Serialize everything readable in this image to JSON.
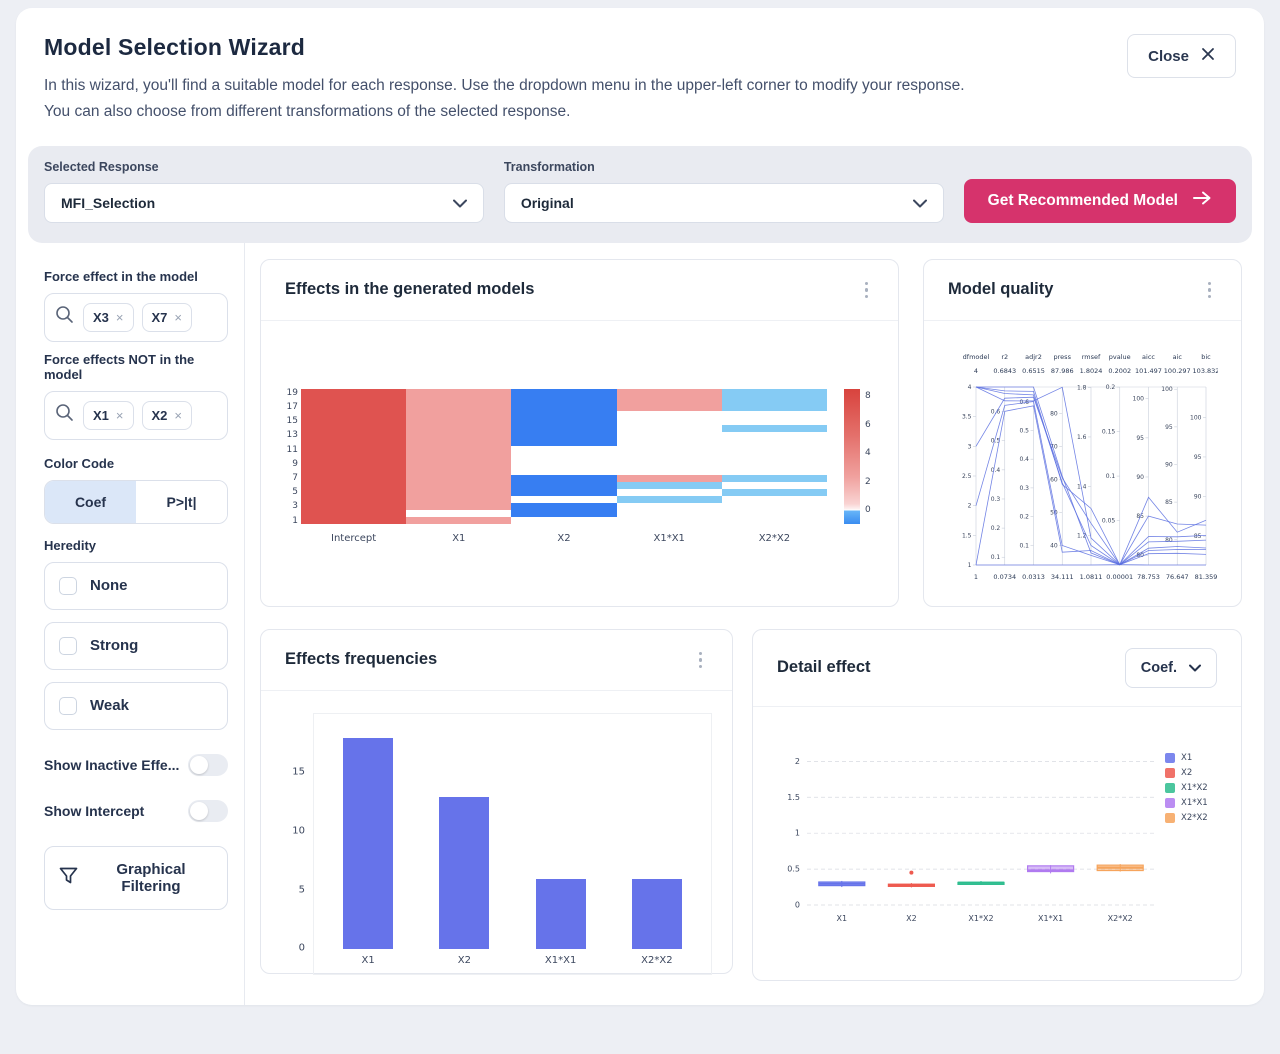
{
  "header": {
    "title": "Model Selection Wizard",
    "description_line1": "In this wizard, you'll find a suitable model for each response. Use the dropdown menu in the upper-left corner to modify your response.",
    "description_line2": "You can also choose from different transformations of the selected response.",
    "close_label": "Close"
  },
  "toolbar": {
    "selected_response_label": "Selected Response",
    "selected_response_value": "MFI_Selection",
    "transformation_label": "Transformation",
    "transformation_value": "Original",
    "recommend_button_label": "Get Recommended Model",
    "accent_color": "#d6336c"
  },
  "sidebar": {
    "force_in": {
      "label": "Force effect in the model",
      "chips": [
        "X3",
        "X7"
      ]
    },
    "force_out": {
      "label": "Force effects NOT in the model",
      "chips": [
        "X1",
        "X2"
      ]
    },
    "color_code": {
      "label": "Color Code",
      "options": [
        "Coef",
        "P>|t|"
      ],
      "selected": "Coef"
    },
    "heredity": {
      "label": "Heredity",
      "options": [
        {
          "label": "None",
          "checked": false
        },
        {
          "label": "Strong",
          "checked": false
        },
        {
          "label": "Weak",
          "checked": false
        }
      ]
    },
    "toggles": [
      {
        "label": "Show Inactive Effe...",
        "on": false
      },
      {
        "label": "Show Intercept",
        "on": false
      }
    ],
    "graphical_filtering_label": "Graphical Filtering"
  },
  "cards": {
    "effects_models": {
      "title": "Effects in the generated models"
    },
    "model_quality": {
      "title": "Model quality"
    },
    "effects_frequencies": {
      "title": "Effects frequencies"
    },
    "detail_effect": {
      "title": "Detail effect",
      "mode_selector": "Coef."
    }
  },
  "chart_data": [
    {
      "id": "effects_heatmap",
      "type": "heatmap",
      "title": "Effects in the generated models",
      "columns": [
        "Intercept",
        "X1",
        "X2",
        "X1*X1",
        "X2*X2"
      ],
      "y_tick_labels": [
        "19",
        "17",
        "15",
        "13",
        "11",
        "9",
        "7",
        "5",
        "3",
        "1"
      ],
      "palette": {
        "red": "#df5350",
        "salmon": "#f1a09e",
        "blue": "#377ef2",
        "lightblue": "#85cbf4",
        "white": "#ffffff"
      },
      "rows": [
        {
          "model": 19,
          "colors": [
            "red",
            "salmon",
            "blue",
            "salmon",
            "lightblue"
          ]
        },
        {
          "model": 18,
          "colors": [
            "red",
            "salmon",
            "blue",
            "salmon",
            "lightblue"
          ]
        },
        {
          "model": 17,
          "colors": [
            "red",
            "salmon",
            "blue",
            "salmon",
            "lightblue"
          ]
        },
        {
          "model": 16,
          "colors": [
            "red",
            "salmon",
            "blue",
            "white",
            "white"
          ]
        },
        {
          "model": 15,
          "colors": [
            "red",
            "salmon",
            "blue",
            "white",
            "white"
          ]
        },
        {
          "model": 14,
          "colors": [
            "red",
            "salmon",
            "blue",
            "white",
            "lightblue"
          ]
        },
        {
          "model": 13,
          "colors": [
            "red",
            "salmon",
            "blue",
            "white",
            "white"
          ]
        },
        {
          "model": 12,
          "colors": [
            "red",
            "salmon",
            "blue",
            "white",
            "white"
          ]
        },
        {
          "model": 11,
          "colors": [
            "red",
            "salmon",
            "white",
            "white",
            "white"
          ]
        },
        {
          "model": 10,
          "colors": [
            "red",
            "salmon",
            "white",
            "white",
            "white"
          ]
        },
        {
          "model": 9,
          "colors": [
            "red",
            "salmon",
            "white",
            "white",
            "white"
          ]
        },
        {
          "model": 8,
          "colors": [
            "red",
            "salmon",
            "white",
            "white",
            "white"
          ]
        },
        {
          "model": 7,
          "colors": [
            "red",
            "salmon",
            "blue",
            "salmon",
            "lightblue"
          ]
        },
        {
          "model": 6,
          "colors": [
            "red",
            "salmon",
            "blue",
            "lightblue",
            "white"
          ]
        },
        {
          "model": 5,
          "colors": [
            "red",
            "salmon",
            "blue",
            "white",
            "lightblue"
          ]
        },
        {
          "model": 4,
          "colors": [
            "red",
            "salmon",
            "white",
            "lightblue",
            "white"
          ]
        },
        {
          "model": 3,
          "colors": [
            "red",
            "salmon",
            "blue",
            "white",
            "white"
          ]
        },
        {
          "model": 2,
          "colors": [
            "red",
            "white",
            "blue",
            "white",
            "white"
          ]
        },
        {
          "model": 1,
          "colors": [
            "red",
            "salmon",
            "white",
            "white",
            "white"
          ]
        }
      ],
      "colorbar": {
        "min": -1,
        "max": 8.5,
        "ticks": [
          8,
          6,
          4,
          2,
          0
        ]
      }
    },
    {
      "id": "model_quality",
      "type": "parallel-coordinates",
      "title": "Model quality",
      "line_color": "#5b6fe0",
      "axes": [
        {
          "name": "dfmodel",
          "max_label": "4",
          "min_label": "1",
          "range": [
            1,
            4
          ],
          "ticks": [
            1,
            1.5,
            2,
            2.5,
            3,
            3.5,
            4
          ]
        },
        {
          "name": "r2",
          "max_label": "0.6843",
          "min_label": "0.0734",
          "range": [
            0.0734,
            0.6843
          ],
          "ticks": [
            0.1,
            0.2,
            0.3,
            0.4,
            0.5,
            0.6
          ]
        },
        {
          "name": "adjr2",
          "max_label": "0.6515",
          "min_label": "0.0313",
          "range": [
            0.0313,
            0.6515
          ],
          "ticks": [
            0.1,
            0.2,
            0.3,
            0.4,
            0.5,
            0.6
          ]
        },
        {
          "name": "press",
          "max_label": "87.986",
          "min_label": "34.111",
          "range": [
            34.111,
            87.986
          ],
          "ticks": [
            40,
            50,
            60,
            70,
            80
          ]
        },
        {
          "name": "rmsef",
          "max_label": "1.8024",
          "min_label": "1.0811",
          "range": [
            1.0811,
            1.8024
          ],
          "ticks": [
            1.2,
            1.4,
            1.6,
            1.8
          ]
        },
        {
          "name": "pvalue",
          "max_label": "0.2002",
          "min_label": "0.00001",
          "range": [
            1e-05,
            0.2002
          ],
          "ticks": [
            0.05,
            0.1,
            0.15,
            0.2
          ]
        },
        {
          "name": "aicc",
          "max_label": "101.497",
          "min_label": "78.753",
          "range": [
            78.753,
            101.497
          ],
          "ticks": [
            80,
            85,
            90,
            95,
            100
          ]
        },
        {
          "name": "aic",
          "max_label": "100.297",
          "min_label": "76.647",
          "range": [
            76.647,
            100.297
          ],
          "ticks": [
            80,
            85,
            90,
            95,
            100
          ]
        },
        {
          "name": "bic",
          "max_label": "103.832",
          "min_label": "81.359",
          "range": [
            81.359,
            103.832
          ],
          "ticks": [
            85,
            90,
            95,
            100
          ]
        }
      ],
      "lines": [
        [
          4,
          0.6843,
          0.6515,
          61.0,
          1.13,
          0.0003,
          80.6,
          78.7,
          83.3
        ],
        [
          4,
          0.662,
          0.624,
          59.0,
          1.16,
          0.0003,
          81.7,
          79.8,
          84.5
        ],
        [
          4,
          0.637,
          0.603,
          87.9,
          1.19,
          0.0003,
          82.4,
          80.4,
          85.1
        ],
        [
          4,
          0.671,
          0.636,
          58.5,
          1.31,
          0.0003,
          87.4,
          81.0,
          87.0
        ],
        [
          3,
          0.646,
          0.616,
          60.5,
          1.25,
          0.0003,
          85.0,
          82.1,
          86.4
        ],
        [
          2,
          0.621,
          0.601,
          40.0,
          1.12,
          0.0003,
          80.2,
          78.2,
          82.7
        ],
        [
          1,
          0.601,
          0.586,
          38.0,
          1.14,
          0.0003,
          80.9,
          79.1,
          83.5
        ],
        [
          1,
          0.0734,
          0.0313,
          34.111,
          1.0811,
          0.0003,
          78.753,
          76.647,
          81.359
        ]
      ]
    },
    {
      "id": "effects_frequencies",
      "type": "bar",
      "title": "Effects frequencies",
      "categories": [
        "X1",
        "X2",
        "X1*X1",
        "X2*X2"
      ],
      "values": [
        18,
        13,
        6,
        6
      ],
      "yticks": [
        0,
        5,
        10,
        15
      ],
      "ylim": [
        0,
        19
      ],
      "bar_color": "#6673ea"
    },
    {
      "id": "detail_effect",
      "type": "box",
      "title": "Detail effect",
      "categories": [
        "X1",
        "X2",
        "X1*X2",
        "X1*X1",
        "X2*X2"
      ],
      "yticks": [
        0,
        0.5,
        1,
        1.5,
        2
      ],
      "ylim": [
        0,
        2.2
      ],
      "series": [
        {
          "name": "X1",
          "color": "#6673ea",
          "low": 0.25,
          "q1": 0.27,
          "median": 0.295,
          "q3": 0.32,
          "high": 0.335,
          "outliers": []
        },
        {
          "name": "X2",
          "color": "#ee5a4f",
          "low": 0.245,
          "q1": 0.26,
          "median": 0.275,
          "q3": 0.29,
          "high": 0.305,
          "outliers": [
            0.45
          ]
        },
        {
          "name": "X1*X2",
          "color": "#2dbd8e",
          "low": 0.28,
          "q1": 0.3,
          "median": 0.31,
          "q3": 0.315,
          "high": 0.335,
          "outliers": []
        },
        {
          "name": "X1*X1",
          "color": "#b07af0",
          "low": 0.44,
          "q1": 0.465,
          "median": 0.48,
          "q3": 0.545,
          "high": 0.555,
          "outliers": []
        },
        {
          "name": "X2*X2",
          "color": "#f6a45c",
          "low": 0.465,
          "q1": 0.48,
          "median": 0.52,
          "q3": 0.555,
          "high": 0.57,
          "outliers": []
        }
      ],
      "legend": [
        "X1",
        "X2",
        "X1*X2",
        "X1*X1",
        "X2*X2"
      ]
    }
  ]
}
